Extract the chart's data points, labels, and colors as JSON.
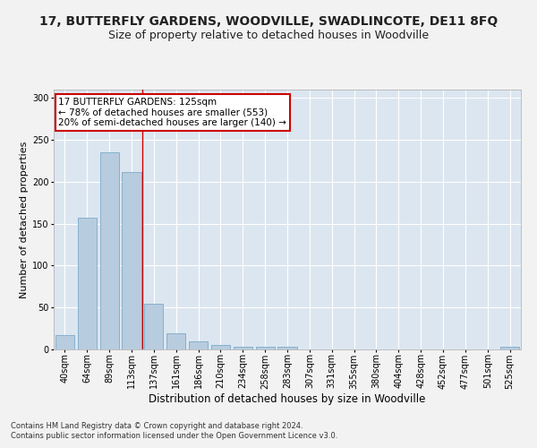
{
  "title": "17, BUTTERFLY GARDENS, WOODVILLE, SWADLINCOTE, DE11 8FQ",
  "subtitle": "Size of property relative to detached houses in Woodville",
  "xlabel": "Distribution of detached houses by size in Woodville",
  "ylabel": "Number of detached properties",
  "categories": [
    "40sqm",
    "64sqm",
    "89sqm",
    "113sqm",
    "137sqm",
    "161sqm",
    "186sqm",
    "210sqm",
    "234sqm",
    "258sqm",
    "283sqm",
    "307sqm",
    "331sqm",
    "355sqm",
    "380sqm",
    "404sqm",
    "428sqm",
    "452sqm",
    "477sqm",
    "501sqm",
    "525sqm"
  ],
  "values": [
    17,
    157,
    235,
    212,
    55,
    19,
    10,
    5,
    3,
    3,
    3,
    0,
    0,
    0,
    0,
    0,
    0,
    0,
    0,
    0,
    3
  ],
  "bar_color": "#b8ccdf",
  "bar_edge_color": "#7aaac8",
  "ylim": [
    0,
    310
  ],
  "yticks": [
    0,
    50,
    100,
    150,
    200,
    250,
    300
  ],
  "vline_x": 3.5,
  "annotation_text": "17 BUTTERFLY GARDENS: 125sqm\n← 78% of detached houses are smaller (553)\n20% of semi-detached houses are larger (140) →",
  "annotation_box_color": "#ffffff",
  "annotation_box_edge_color": "#cc0000",
  "footer_line1": "Contains HM Land Registry data © Crown copyright and database right 2024.",
  "footer_line2": "Contains public sector information licensed under the Open Government Licence v3.0.",
  "bg_color": "#dce6f0",
  "grid_color": "#ffffff",
  "fig_bg_color": "#f2f2f2",
  "title_fontsize": 10,
  "subtitle_fontsize": 9,
  "xlabel_fontsize": 8.5,
  "ylabel_fontsize": 8,
  "tick_fontsize": 7,
  "annotation_fontsize": 7.5,
  "footer_fontsize": 6,
  "bar_linewidth": 0.6
}
